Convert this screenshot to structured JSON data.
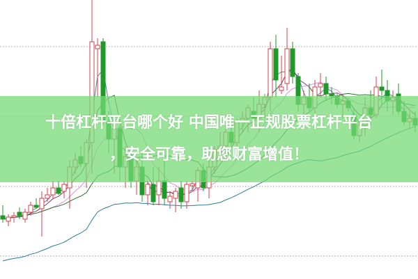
{
  "banner": {
    "line1": "十倍杠杆平台哪个好 中国唯一正规股票杠杆平台",
    "line2": "，安全可靠，助您财富增值！"
  },
  "colors": {
    "up": "#d2424e",
    "down": "#1f9a2a",
    "banner": "#93e393",
    "grid": "#9a9a9a"
  },
  "chart_data": {
    "type": "candlestick",
    "grid": "horizontal dotted",
    "moving_average_colors": [
      "#5a7fa0",
      "#7a3a5a",
      "#e090e0",
      "#2e6e2e",
      "#2a7a9a"
    ],
    "candles": [
      [
        9.0,
        10.5,
        8.0,
        8.5
      ],
      [
        8.2,
        9.2,
        7.5,
        8.8
      ],
      [
        8.8,
        9.5,
        8.0,
        9.0
      ],
      [
        9.5,
        10.2,
        8.5,
        9.0
      ],
      [
        8.5,
        10.0,
        8.0,
        9.5
      ],
      [
        9.5,
        11.0,
        9.0,
        10.5
      ],
      [
        10.5,
        11.5,
        10.0,
        10.2
      ],
      [
        10.0,
        12.5,
        6.0,
        11.5
      ],
      [
        11.5,
        13.0,
        11.0,
        12.0
      ],
      [
        12.0,
        14.0,
        11.5,
        13.0
      ],
      [
        13.0,
        14.0,
        12.0,
        12.2
      ],
      [
        12.5,
        14.0,
        11.5,
        13.5
      ],
      [
        13.0,
        17.0,
        10.0,
        16.0
      ],
      [
        16.0,
        18.0,
        15.0,
        17.0
      ],
      [
        17.5,
        19.0,
        16.0,
        16.5
      ],
      [
        16.5,
        20.0,
        13.0,
        19.5
      ],
      [
        19.5,
        40.0,
        15.0,
        34.0
      ],
      [
        33.0,
        34.5,
        26.0,
        33.5
      ],
      [
        34.0,
        34.5,
        22.0,
        22.5
      ],
      [
        22.5,
        24.0,
        18.0,
        20.0
      ],
      [
        20.0,
        23.0,
        15.0,
        21.5
      ],
      [
        21.5,
        22.0,
        14.0,
        16.0
      ],
      [
        16.0,
        19.0,
        13.0,
        17.5
      ],
      [
        17.5,
        18.5,
        13.0,
        14.0
      ],
      [
        14.0,
        17.0,
        12.0,
        16.0
      ],
      [
        16.0,
        18.0,
        11.0,
        12.0
      ],
      [
        12.0,
        14.0,
        10.5,
        13.5
      ],
      [
        13.5,
        16.0,
        10.5,
        11.0
      ],
      [
        12.0,
        16.0,
        10.5,
        14.0
      ],
      [
        14.0,
        17.0,
        10.5,
        11.5
      ],
      [
        11.0,
        12.5,
        10.0,
        11.8
      ],
      [
        11.5,
        13.0,
        9.5,
        12.5
      ],
      [
        13.0,
        14.0,
        10.0,
        11.0
      ],
      [
        11.0,
        14.0,
        10.0,
        13.5
      ],
      [
        13.3,
        14.0,
        12.5,
        13.6
      ],
      [
        13.0,
        16.0,
        11.0,
        15.5
      ],
      [
        15.5,
        16.5,
        12.5,
        13.0
      ],
      [
        13.0,
        17.0,
        11.5,
        16.0
      ],
      [
        16.0,
        19.0,
        15.0,
        18.5
      ],
      [
        18.5,
        21.0,
        17.0,
        19.0
      ],
      [
        19.0,
        22.0,
        17.0,
        21.0
      ],
      [
        21.0,
        22.5,
        19.0,
        19.5
      ],
      [
        19.5,
        23.0,
        19.0,
        22.5
      ],
      [
        22.5,
        24.0,
        21.0,
        23.0
      ],
      [
        23.0,
        25.0,
        21.0,
        24.5
      ],
      [
        24.0,
        26.0,
        22.0,
        23.0
      ],
      [
        23.0,
        27.0,
        21.0,
        25.0
      ],
      [
        25.0,
        26.5,
        23.0,
        26.0
      ],
      [
        26.0,
        34.0,
        24.0,
        33.0
      ],
      [
        33.0,
        35.0,
        26.0,
        28.5
      ],
      [
        27.0,
        32.0,
        26.5,
        27.5
      ],
      [
        28.0,
        36.0,
        27.0,
        33.0
      ],
      [
        33.0,
        34.0,
        28.0,
        29.0
      ],
      [
        29.0,
        29.5,
        24.0,
        25.0
      ],
      [
        25.0,
        27.0,
        23.0,
        26.0
      ],
      [
        26.0,
        28.0,
        24.0,
        24.5
      ],
      [
        24.5,
        28.5,
        23.0,
        27.5
      ],
      [
        27.5,
        29.5,
        26.0,
        28.0
      ],
      [
        28.0,
        29.0,
        25.5,
        26.5
      ],
      [
        26.5,
        27.5,
        25.0,
        26.2
      ],
      [
        26.2,
        26.5,
        24.5,
        25.0
      ],
      [
        25.0,
        26.5,
        23.0,
        25.5
      ],
      [
        25.5,
        26.0,
        24.0,
        24.5
      ],
      [
        23.5,
        24.5,
        20.0,
        20.5
      ],
      [
        20.5,
        22.5,
        19.5,
        22.0
      ],
      [
        22.0,
        26.0,
        20.5,
        24.5
      ],
      [
        24.5,
        27.0,
        22.0,
        23.5
      ],
      [
        23.5,
        29.0,
        23.0,
        27.5
      ],
      [
        27.5,
        30.0,
        25.0,
        27.0
      ],
      [
        27.0,
        28.5,
        24.0,
        25.5
      ],
      [
        25.5,
        27.0,
        23.5,
        26.0
      ],
      [
        26.5,
        28.0,
        23.5,
        24.0
      ],
      [
        24.0,
        25.5,
        22.0,
        22.5
      ],
      [
        22.5,
        24.0,
        21.5,
        23.0
      ],
      [
        23.0,
        24.0,
        21.0,
        22.0
      ]
    ],
    "gridlines": [
      33.3,
      23.3,
      13.2,
      3.2
    ]
  }
}
